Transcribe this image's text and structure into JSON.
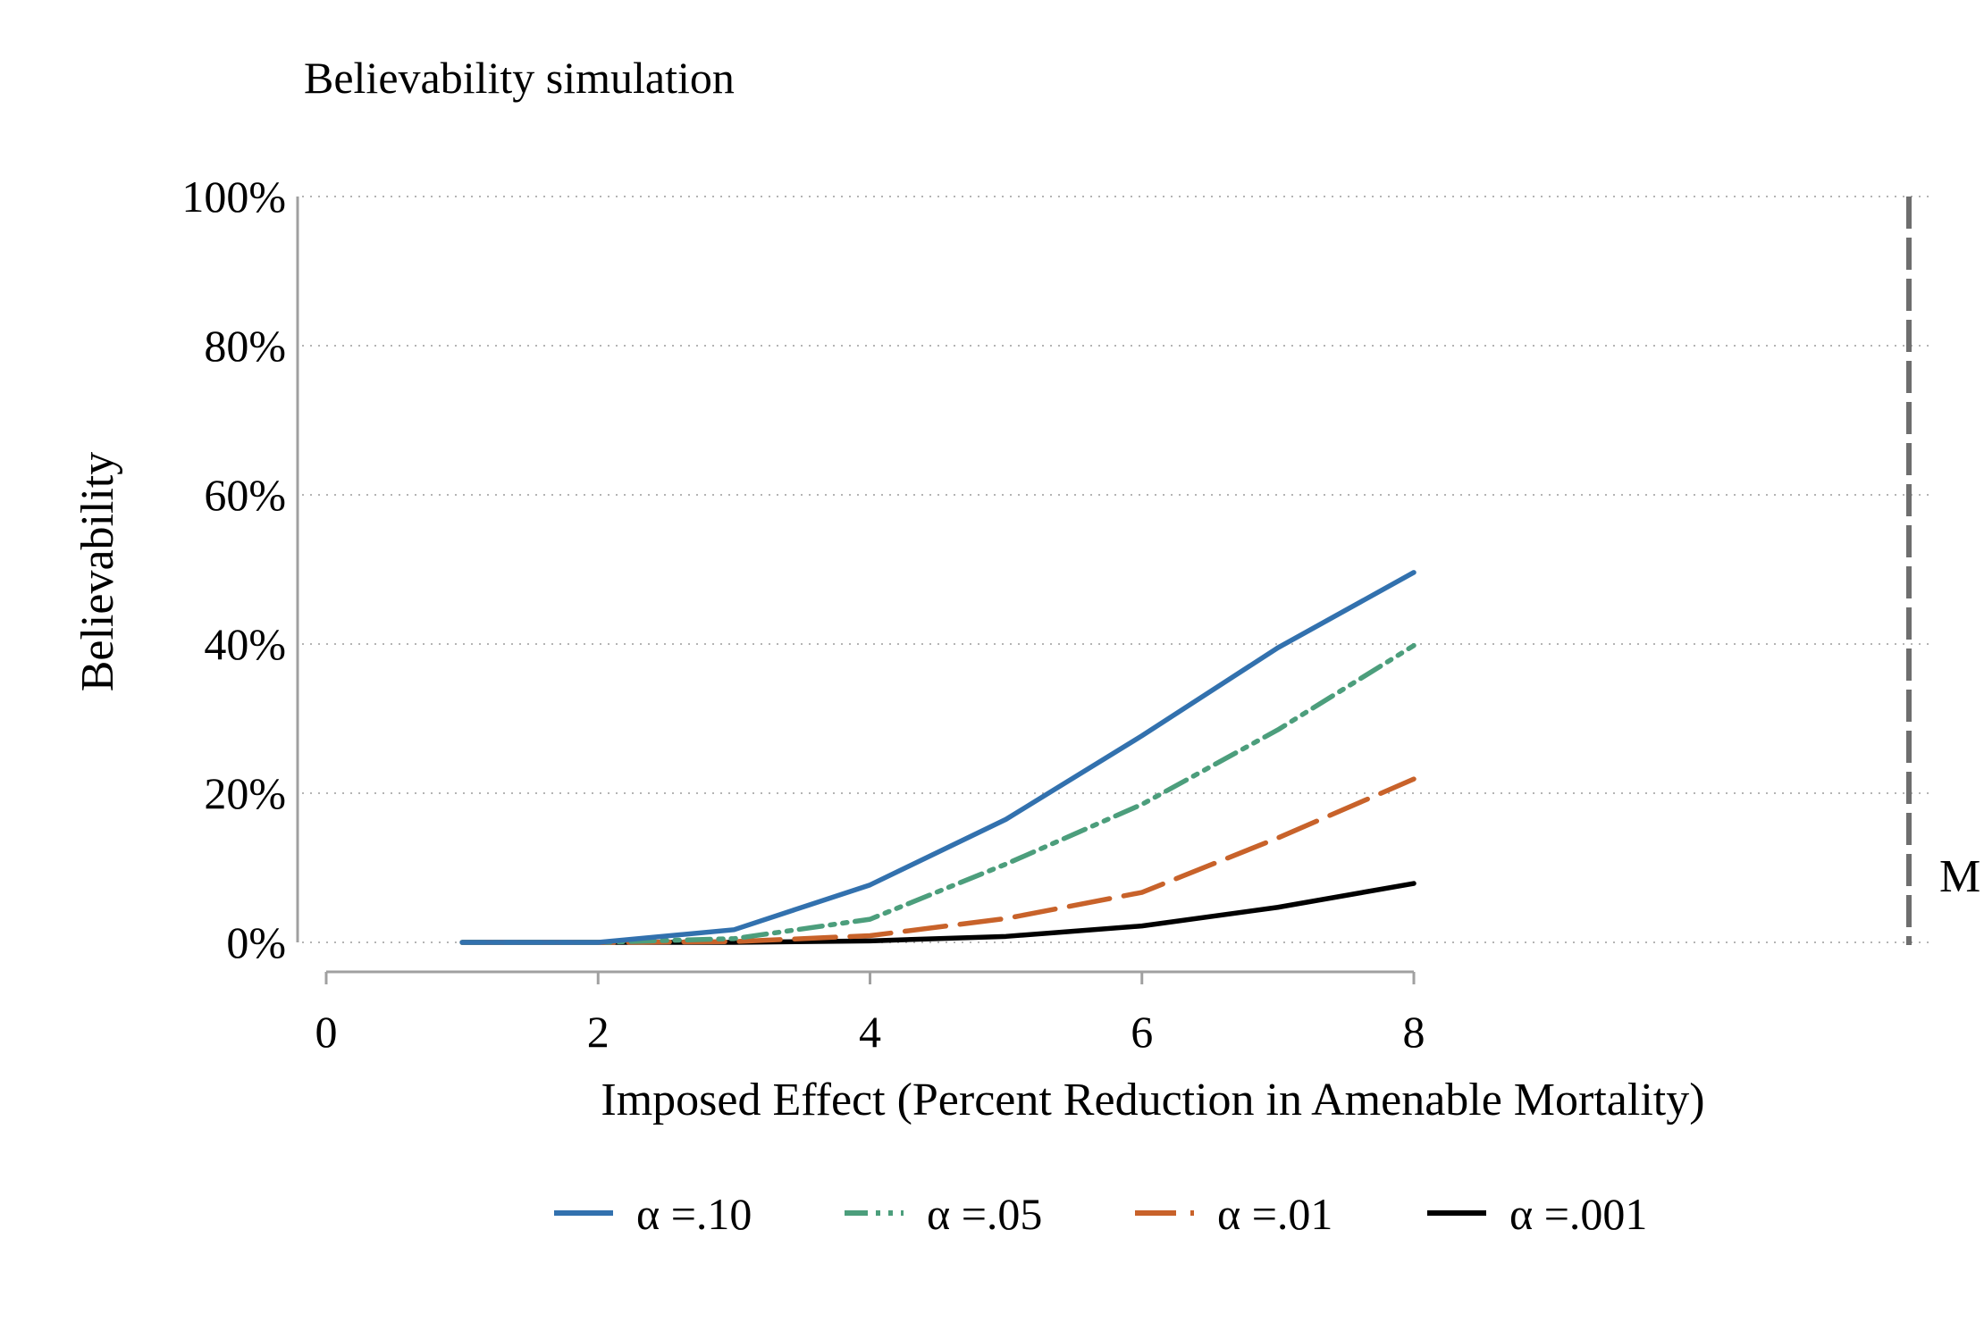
{
  "chart_data": {
    "type": "line",
    "title": "Believability simulation",
    "xlabel": "Imposed Effect (Percent Reduction in Amenable Mortality)",
    "ylabel": "Believability",
    "xlim": [
      0,
      8
    ],
    "ylim": [
      0,
      100
    ],
    "x_ticks": [
      "0",
      "2",
      "4",
      "6",
      "8"
    ],
    "y_ticks": [
      "0%",
      "20%",
      "40%",
      "60%",
      "80%",
      "100%"
    ],
    "grid": "horizontal dotted",
    "legend_position": "bottom",
    "reference_line": {
      "label": "M",
      "style": "dashed vertical",
      "color": "#6e6e6e"
    },
    "x": [
      1,
      2,
      3,
      4,
      5,
      6,
      7,
      8
    ],
    "series": [
      {
        "name": "α =.10",
        "color": "#3271ae",
        "dash": "solid",
        "values": [
          0,
          0,
          1.7,
          7.7,
          16.5,
          27.7,
          39.5,
          49.6
        ]
      },
      {
        "name": "α =.05",
        "color": "#4c9e7c",
        "dash": "dashdot",
        "values": [
          0,
          0,
          0.5,
          3.1,
          10.5,
          18.5,
          28.5,
          39.8
        ]
      },
      {
        "name": "α =.01",
        "color": "#c8622a",
        "dash": "dash",
        "values": [
          0,
          0,
          0.1,
          0.9,
          3.2,
          6.7,
          14.0,
          21.9
        ]
      },
      {
        "name": "α =.001",
        "color": "#000000",
        "dash": "solid",
        "values": [
          0,
          0,
          0,
          0.2,
          0.8,
          2.2,
          4.7,
          7.9
        ]
      }
    ]
  }
}
